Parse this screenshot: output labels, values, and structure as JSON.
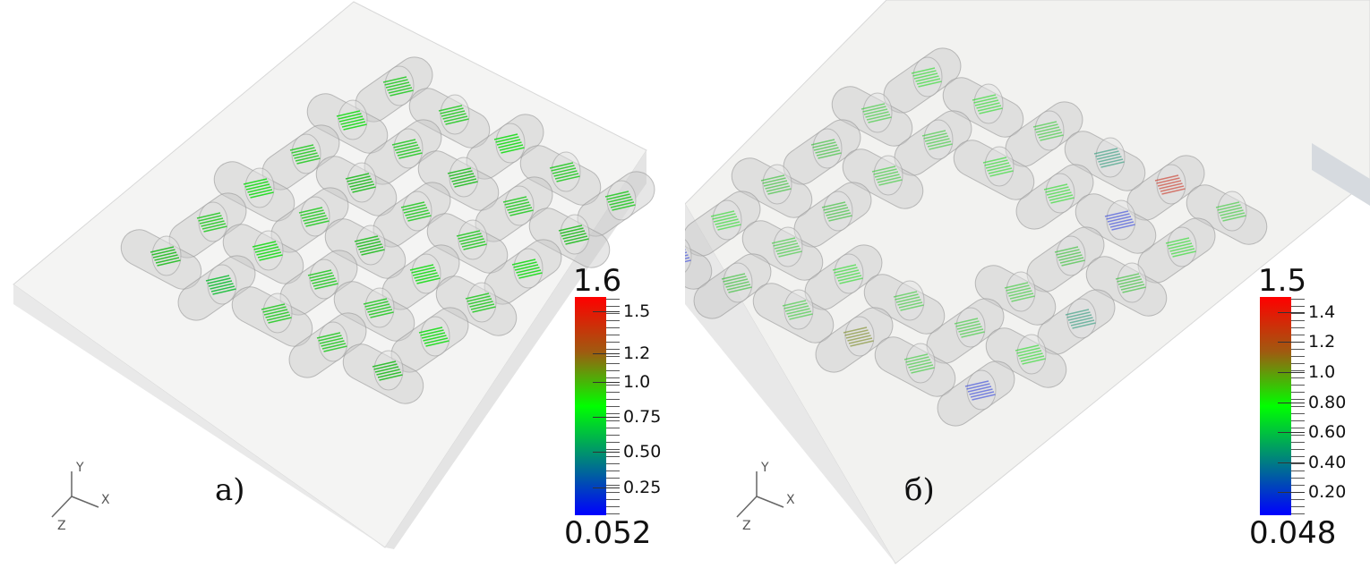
{
  "panels": [
    {
      "label": "а)",
      "colorbar": {
        "max": "1.6",
        "min": "0.052",
        "range": [
          0.052,
          1.6
        ],
        "ticks": [
          {
            "value": 1.5,
            "label": "1.5"
          },
          {
            "value": 1.2,
            "label": "1.2"
          },
          {
            "value": 1.0,
            "label": "1.0"
          },
          {
            "value": 0.75,
            "label": "0.75"
          },
          {
            "value": 0.5,
            "label": "0.50"
          },
          {
            "value": 0.25,
            "label": "0.25"
          }
        ],
        "colors": [
          "#0000ff",
          "#008080",
          "#00ff00",
          "#a05a10",
          "#ff0000"
        ]
      }
    },
    {
      "label": "б)",
      "colorbar": {
        "max": "1.5",
        "min": "0.048",
        "range": [
          0.048,
          1.5
        ],
        "ticks": [
          {
            "value": 1.4,
            "label": "1.4"
          },
          {
            "value": 1.2,
            "label": "1.2"
          },
          {
            "value": 1.0,
            "label": "1.0"
          },
          {
            "value": 0.8,
            "label": "0.80"
          },
          {
            "value": 0.6,
            "label": "0.60"
          },
          {
            "value": 0.4,
            "label": "0.40"
          },
          {
            "value": 0.2,
            "label": "0.20"
          }
        ],
        "colors": [
          "#0000ff",
          "#008080",
          "#00ff00",
          "#a05a10",
          "#ff0000"
        ]
      }
    }
  ],
  "axes_triad": {
    "x": "X",
    "y": "Y",
    "z": "Z"
  }
}
